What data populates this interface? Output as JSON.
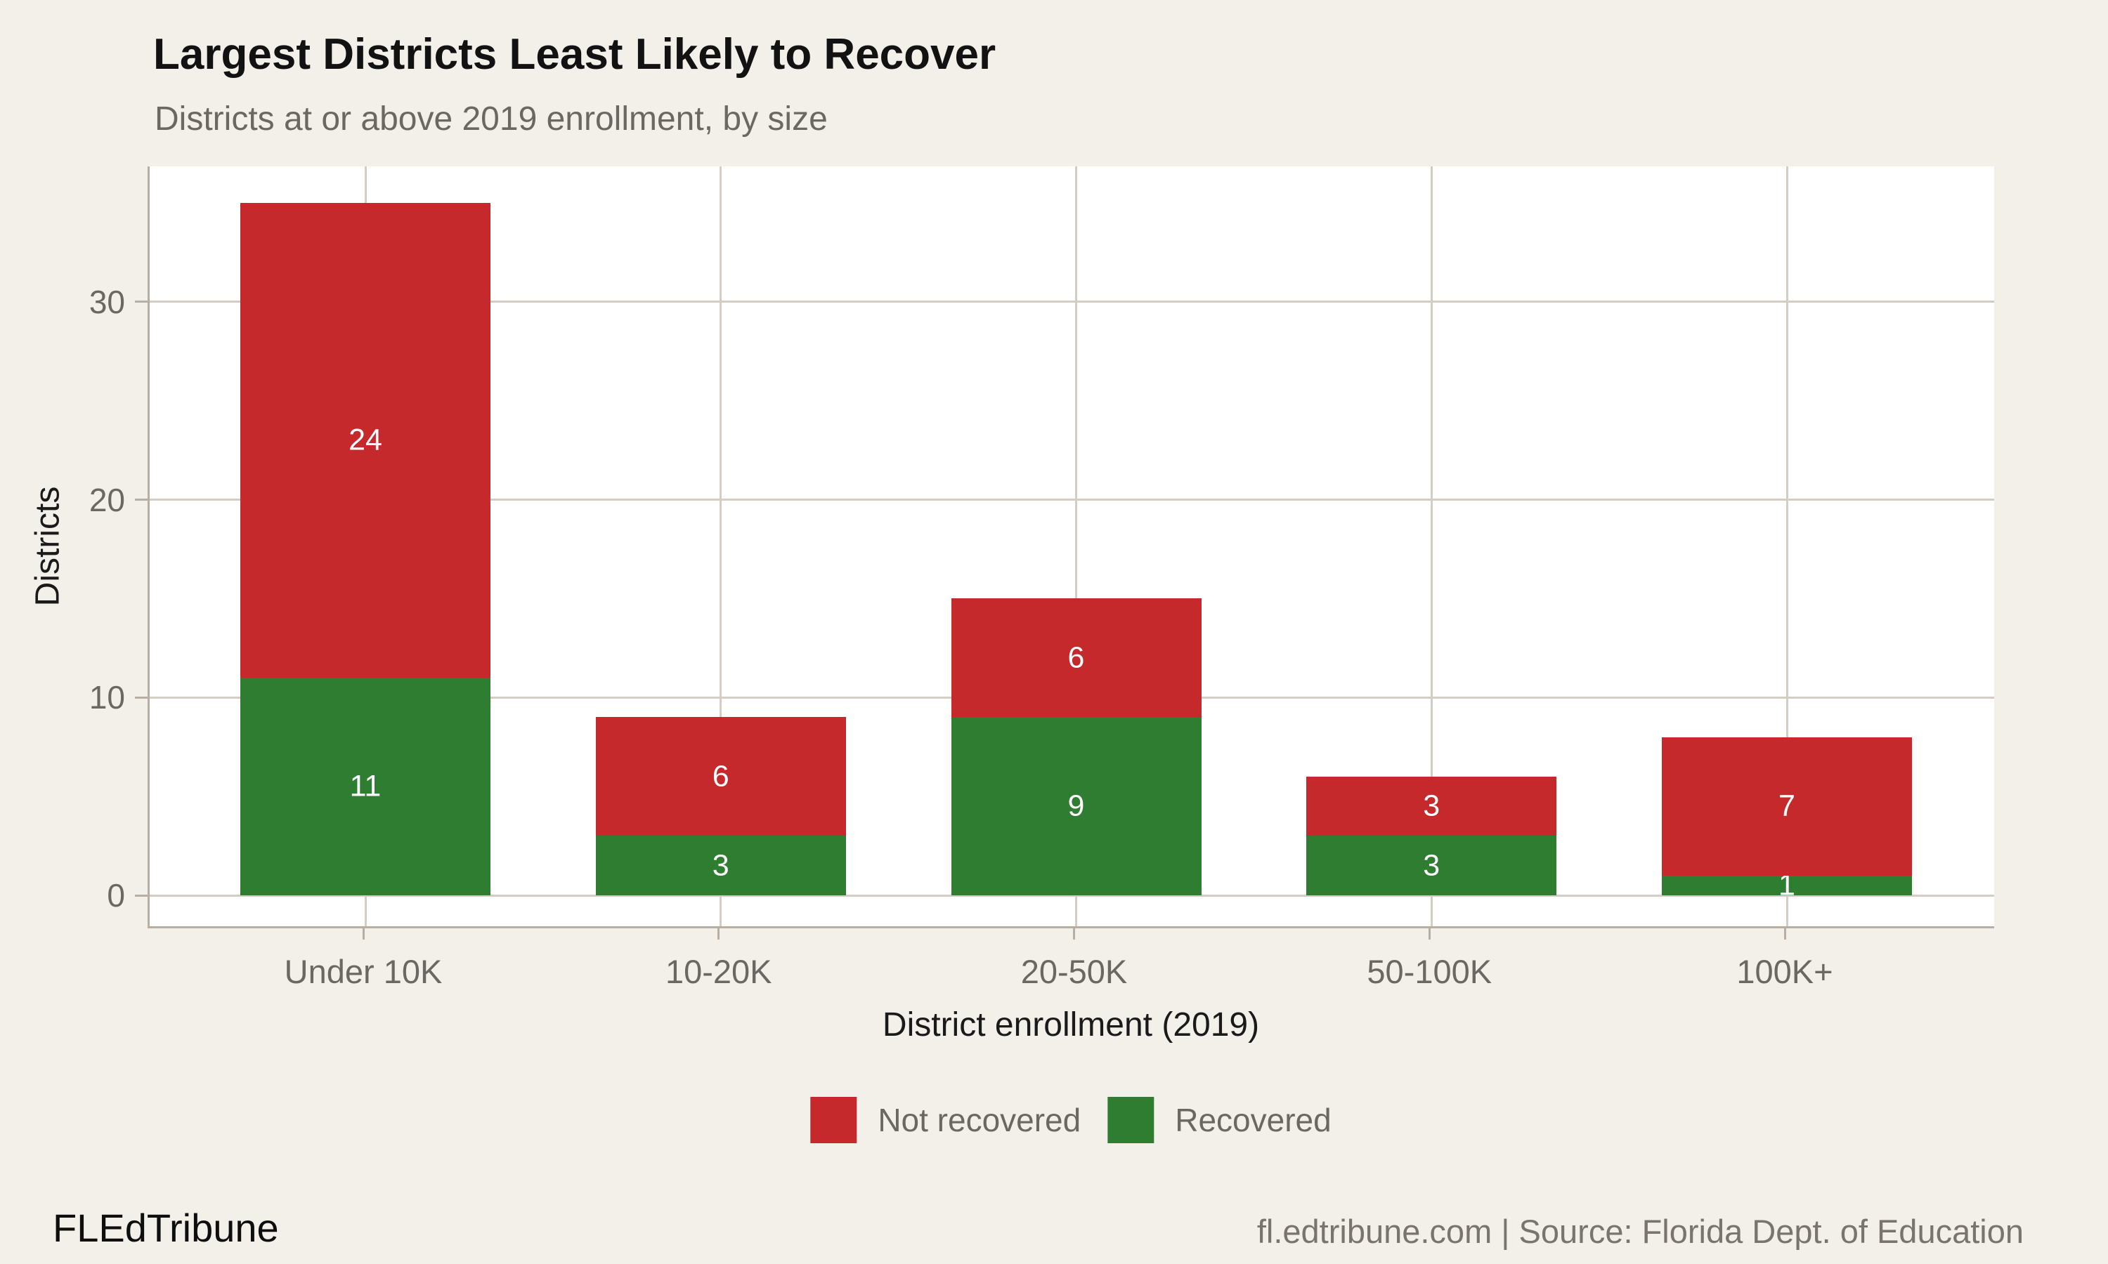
{
  "header": {
    "title": "Largest Districts Least Likely to Recover",
    "subtitle": "Districts at or above 2019 enrollment, by size"
  },
  "chart_data": {
    "type": "bar",
    "stacked": true,
    "categories": [
      "Under 10K",
      "10-20K",
      "20-50K",
      "50-100K",
      "100K+"
    ],
    "series": [
      {
        "name": "Recovered",
        "color": "#2E7D31",
        "values": [
          11,
          3,
          9,
          3,
          1
        ]
      },
      {
        "name": "Not recovered",
        "color": "#C5292C",
        "values": [
          24,
          6,
          6,
          3,
          7
        ]
      }
    ],
    "totals": [
      35,
      9,
      15,
      6,
      8
    ],
    "title": "Largest Districts Least Likely to Recover",
    "subtitle": "Districts at or above 2019 enrollment, by size",
    "xlabel": "District enrollment (2019)",
    "ylabel": "Districts",
    "yticks": [
      0,
      10,
      20,
      30
    ],
    "ylim": [
      0,
      36.9
    ],
    "grid": true,
    "legend_position": "bottom",
    "bar_label_color": "#FFFFFF",
    "panel_background": "#FFFFFF",
    "page_background": "#F3F0EA"
  },
  "legend": {
    "items": [
      {
        "label": "Not recovered",
        "color": "#C5292C"
      },
      {
        "label": "Recovered",
        "color": "#2E7D31"
      }
    ]
  },
  "footer": {
    "brand": "FLEdTribune",
    "source": "fl.edtribune.com | Source: Florida Dept. of Education"
  }
}
